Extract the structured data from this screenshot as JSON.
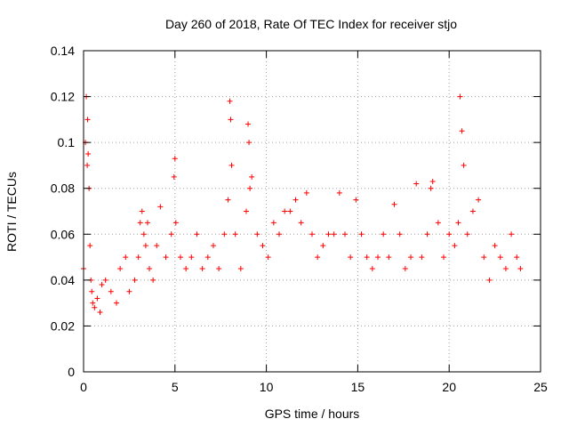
{
  "chart_data": {
    "type": "scatter",
    "title": "Day 260 of 2018, Rate Of TEC Index for receiver stjo",
    "xlabel": "GPS time / hours",
    "ylabel": "ROTI / TECUs",
    "xlim": [
      0,
      25
    ],
    "ylim": [
      0,
      0.14
    ],
    "x_ticks": [
      0,
      5,
      10,
      15,
      20,
      25
    ],
    "x_tick_labels": [
      "0",
      "5",
      "10",
      "15",
      "20",
      "25"
    ],
    "y_ticks": [
      0,
      0.02,
      0.04,
      0.06,
      0.08,
      0.1,
      0.12,
      0.14
    ],
    "y_tick_labels": [
      "0",
      "0.02",
      "0.04",
      "0.06",
      "0.08",
      "0.1",
      "0.12",
      "0.14"
    ],
    "grid": true,
    "marker": "+",
    "series_color": "#ff0000",
    "series": [
      {
        "name": "ROTI",
        "x": [
          0.0,
          0.1,
          0.15,
          0.2,
          0.22,
          0.25,
          0.3,
          0.35,
          0.4,
          0.45,
          0.5,
          0.6,
          0.75,
          0.9,
          1.0,
          1.2,
          1.5,
          1.8,
          2.0,
          2.3,
          2.5,
          2.8,
          3.0,
          3.1,
          3.2,
          3.3,
          3.4,
          3.5,
          3.6,
          3.8,
          4.0,
          4.2,
          4.5,
          4.8,
          4.95,
          5.0,
          5.05,
          5.3,
          5.6,
          5.9,
          6.2,
          6.5,
          6.8,
          7.1,
          7.4,
          7.7,
          7.9,
          8.0,
          8.05,
          8.1,
          8.3,
          8.6,
          8.9,
          9.0,
          9.05,
          9.1,
          9.2,
          9.5,
          9.8,
          10.1,
          10.4,
          10.7,
          11.0,
          11.3,
          11.6,
          11.9,
          12.2,
          12.5,
          12.8,
          13.1,
          13.4,
          13.7,
          14.0,
          14.3,
          14.6,
          14.9,
          15.2,
          15.5,
          15.8,
          16.1,
          16.4,
          16.7,
          17.0,
          17.3,
          17.6,
          17.9,
          18.2,
          18.5,
          18.8,
          19.0,
          19.1,
          19.4,
          19.7,
          20.0,
          20.3,
          20.5,
          20.6,
          20.7,
          20.8,
          21.0,
          21.3,
          21.6,
          21.9,
          22.2,
          22.5,
          22.8,
          23.1,
          23.4,
          23.7,
          23.9
        ],
        "y": [
          0.045,
          0.1,
          0.12,
          0.09,
          0.11,
          0.095,
          0.08,
          0.055,
          0.04,
          0.035,
          0.03,
          0.028,
          0.032,
          0.026,
          0.038,
          0.04,
          0.035,
          0.03,
          0.045,
          0.05,
          0.035,
          0.04,
          0.05,
          0.065,
          0.07,
          0.06,
          0.055,
          0.065,
          0.045,
          0.04,
          0.055,
          0.072,
          0.05,
          0.06,
          0.085,
          0.093,
          0.065,
          0.05,
          0.045,
          0.05,
          0.06,
          0.045,
          0.05,
          0.055,
          0.045,
          0.06,
          0.075,
          0.118,
          0.11,
          0.09,
          0.06,
          0.045,
          0.07,
          0.108,
          0.1,
          0.08,
          0.085,
          0.06,
          0.055,
          0.05,
          0.065,
          0.06,
          0.07,
          0.07,
          0.075,
          0.065,
          0.078,
          0.06,
          0.05,
          0.055,
          0.06,
          0.06,
          0.078,
          0.06,
          0.05,
          0.075,
          0.06,
          0.05,
          0.045,
          0.05,
          0.06,
          0.05,
          0.073,
          0.06,
          0.045,
          0.05,
          0.082,
          0.05,
          0.06,
          0.08,
          0.083,
          0.065,
          0.05,
          0.06,
          0.055,
          0.065,
          0.12,
          0.105,
          0.09,
          0.06,
          0.07,
          0.075,
          0.05,
          0.04,
          0.055,
          0.05,
          0.045,
          0.06,
          0.05,
          0.045
        ]
      }
    ]
  }
}
